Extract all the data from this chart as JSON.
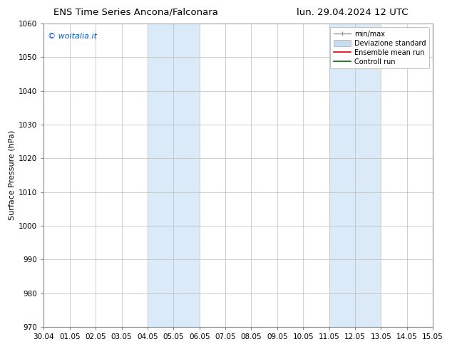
{
  "title_left": "ENS Time Series Ancona/Falconara",
  "title_right": "lun. 29.04.2024 12 UTC",
  "ylabel": "Surface Pressure (hPa)",
  "ylim": [
    970,
    1060
  ],
  "yticks": [
    970,
    980,
    990,
    1000,
    1010,
    1020,
    1030,
    1040,
    1050,
    1060
  ],
  "xtick_labels": [
    "30.04",
    "01.05",
    "02.05",
    "03.05",
    "04.05",
    "05.05",
    "06.05",
    "07.05",
    "08.05",
    "09.05",
    "10.05",
    "11.05",
    "12.05",
    "13.05",
    "14.05",
    "15.05"
  ],
  "watermark": "© woitalia.it",
  "watermark_color": "#0055cc",
  "shaded_bands": [
    {
      "xstart": 4,
      "xend": 6,
      "color": "#daeaf8"
    },
    {
      "xstart": 11,
      "xend": 13,
      "color": "#daeaf8"
    }
  ],
  "bg_color": "#ffffff",
  "grid_color": "#bbbbbb",
  "title_fontsize": 9.5,
  "axis_fontsize": 8,
  "tick_fontsize": 7.5,
  "legend_fontsize": 7.0,
  "watermark_fontsize": 8
}
